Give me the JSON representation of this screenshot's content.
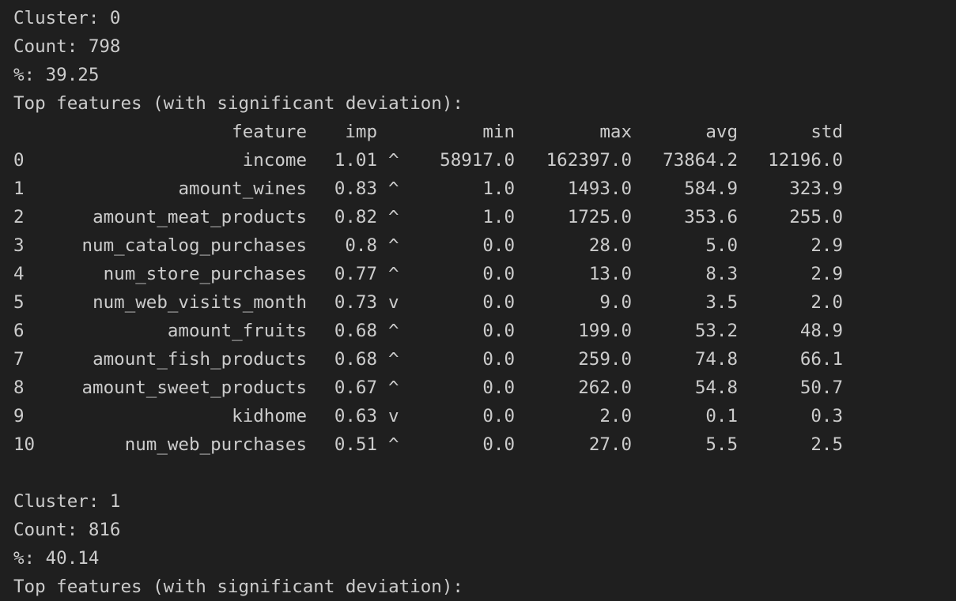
{
  "clusters": [
    {
      "cluster_line": "Cluster: 0",
      "count_line": "Count: 798",
      "pct_line": "%: 39.25",
      "top_line": "Top features (with significant deviation):",
      "headers": {
        "feature": "feature",
        "imp": "imp",
        "min": "min",
        "max": "max",
        "avg": "avg",
        "std": "std"
      },
      "rows": [
        {
          "idx": "0",
          "feature": "income",
          "imp": "1.01",
          "dir": "^",
          "min": "58917.0",
          "max": "162397.0",
          "avg": "73864.2",
          "std": "12196.0"
        },
        {
          "idx": "1",
          "feature": "amount_wines",
          "imp": "0.83",
          "dir": "^",
          "min": "1.0",
          "max": "1493.0",
          "avg": "584.9",
          "std": "323.9"
        },
        {
          "idx": "2",
          "feature": "amount_meat_products",
          "imp": "0.82",
          "dir": "^",
          "min": "1.0",
          "max": "1725.0",
          "avg": "353.6",
          "std": "255.0"
        },
        {
          "idx": "3",
          "feature": "num_catalog_purchases",
          "imp": "0.8",
          "dir": "^",
          "min": "0.0",
          "max": "28.0",
          "avg": "5.0",
          "std": "2.9"
        },
        {
          "idx": "4",
          "feature": "num_store_purchases",
          "imp": "0.77",
          "dir": "^",
          "min": "0.0",
          "max": "13.0",
          "avg": "8.3",
          "std": "2.9"
        },
        {
          "idx": "5",
          "feature": "num_web_visits_month",
          "imp": "0.73",
          "dir": "v",
          "min": "0.0",
          "max": "9.0",
          "avg": "3.5",
          "std": "2.0"
        },
        {
          "idx": "6",
          "feature": "amount_fruits",
          "imp": "0.68",
          "dir": "^",
          "min": "0.0",
          "max": "199.0",
          "avg": "53.2",
          "std": "48.9"
        },
        {
          "idx": "7",
          "feature": "amount_fish_products",
          "imp": "0.68",
          "dir": "^",
          "min": "0.0",
          "max": "259.0",
          "avg": "74.8",
          "std": "66.1"
        },
        {
          "idx": "8",
          "feature": "amount_sweet_products",
          "imp": "0.67",
          "dir": "^",
          "min": "0.0",
          "max": "262.0",
          "avg": "54.8",
          "std": "50.7"
        },
        {
          "idx": "9",
          "feature": "kidhome",
          "imp": "0.63",
          "dir": "v",
          "min": "0.0",
          "max": "2.0",
          "avg": "0.1",
          "std": "0.3"
        },
        {
          "idx": "10",
          "feature": "num_web_purchases",
          "imp": "0.51",
          "dir": "^",
          "min": "0.0",
          "max": "27.0",
          "avg": "5.5",
          "std": "2.5"
        }
      ]
    },
    {
      "cluster_line": "Cluster: 1",
      "count_line": "Count: 816",
      "pct_line": "%: 40.14",
      "top_line": "Top features (with significant deviation):"
    }
  ]
}
